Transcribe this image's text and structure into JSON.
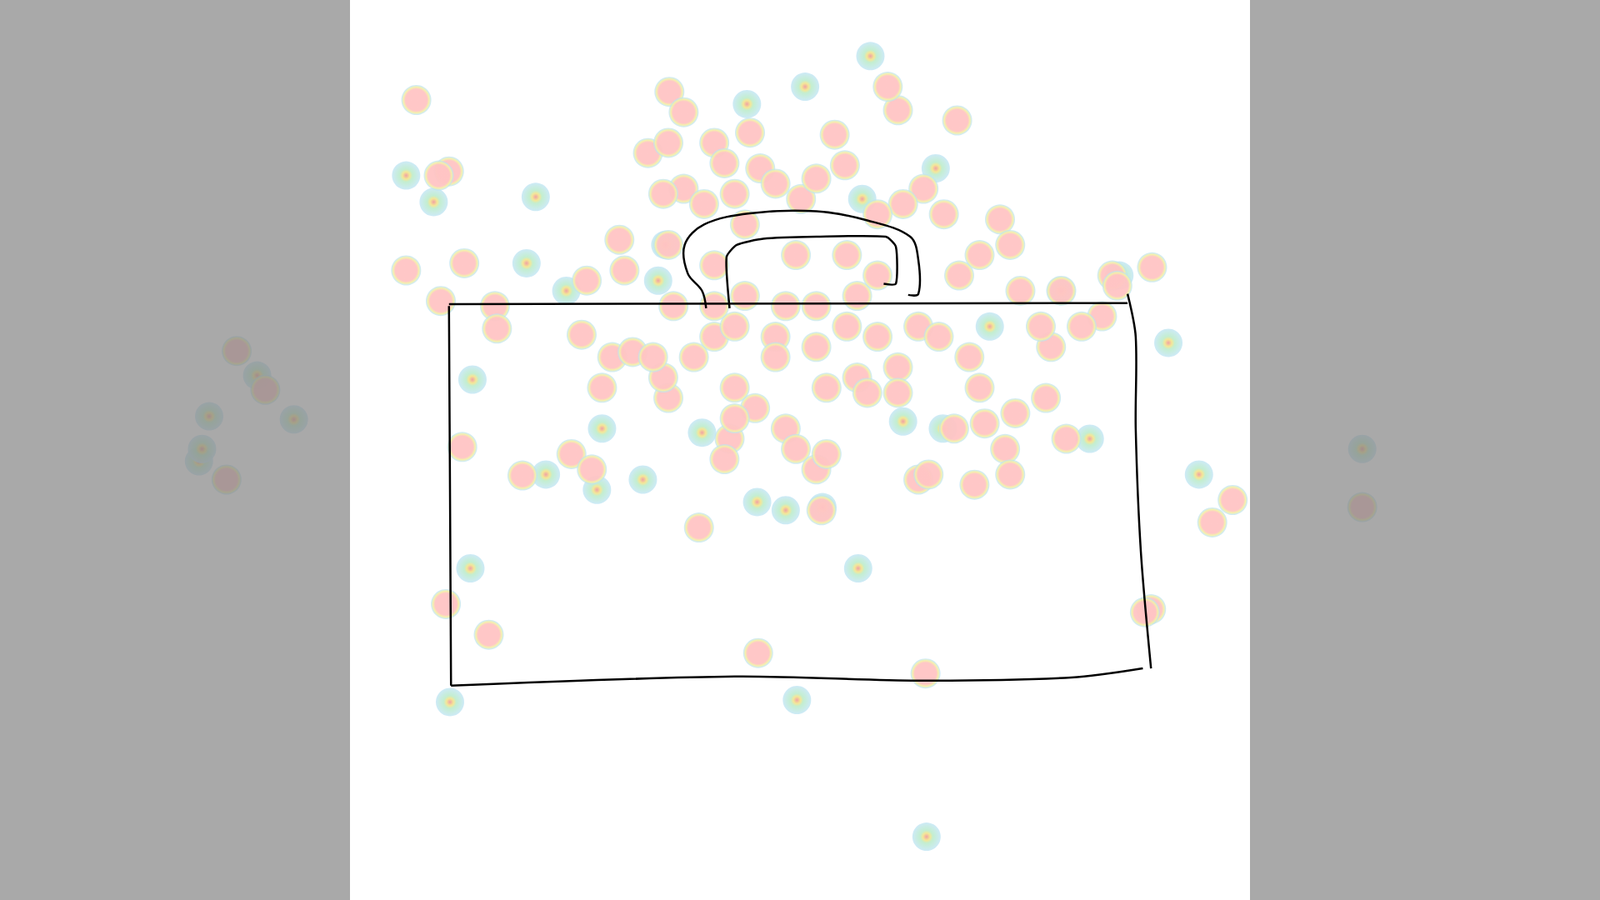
{
  "chart_data": {
    "type": "scatter",
    "xlim": [
      0,
      1568
    ],
    "ylim": [
      882,
      0
    ],
    "tick_labels": false,
    "grid": false,
    "series": [
      {
        "color": "#c8e8f6",
        "marker": "circle",
        "values": [
          [
            789,
            85
          ],
          [
            853,
            55
          ],
          [
            732,
            102
          ],
          [
            917,
            165
          ],
          [
            525,
            193
          ],
          [
            516,
            258
          ],
          [
            555,
            285
          ],
          [
            398,
            172
          ],
          [
            425,
            198
          ],
          [
            463,
            372
          ],
          [
            590,
            420
          ],
          [
            585,
            480
          ],
          [
            630,
            470
          ],
          [
            535,
            465
          ],
          [
            742,
            492
          ],
          [
            770,
            500
          ],
          [
            806,
            497
          ],
          [
            688,
            424
          ],
          [
            841,
            557
          ],
          [
            461,
            557
          ],
          [
            441,
            688
          ],
          [
            781,
            686
          ],
          [
            908,
            820
          ],
          [
            1068,
            430
          ],
          [
            1175,
            465
          ],
          [
            1145,
            336
          ],
          [
            1040,
            285
          ],
          [
            924,
            420
          ],
          [
            885,
            413
          ],
          [
            652,
            240
          ],
          [
            645,
            275
          ],
          [
            1097,
            270
          ],
          [
            970,
            320
          ],
          [
            845,
            195
          ],
          [
            252,
            368
          ],
          [
            205,
            408
          ],
          [
            288,
            411
          ],
          [
            195,
            452
          ],
          [
            198,
            440
          ],
          [
            1335,
            440
          ]
        ]
      },
      {
        "color": "#ffc4c4",
        "marker": "circle",
        "values": [
          [
            408,
            98
          ],
          [
            440,
            168
          ],
          [
            430,
            172
          ],
          [
            398,
            265
          ],
          [
            432,
            295
          ],
          [
            455,
            258
          ],
          [
            485,
            300
          ],
          [
            487,
            322
          ],
          [
            880,
            108
          ],
          [
            870,
            85
          ],
          [
            938,
            118
          ],
          [
            818,
            132
          ],
          [
            828,
            162
          ],
          [
            656,
            90
          ],
          [
            670,
            110
          ],
          [
            635,
            150
          ],
          [
            655,
            140
          ],
          [
            700,
            140
          ],
          [
            735,
            130
          ],
          [
            710,
            160
          ],
          [
            745,
            165
          ],
          [
            760,
            180
          ],
          [
            785,
            195
          ],
          [
            800,
            175
          ],
          [
            670,
            185
          ],
          [
            690,
            200
          ],
          [
            650,
            190
          ],
          [
            720,
            190
          ],
          [
            730,
            220
          ],
          [
            905,
            185
          ],
          [
            925,
            210
          ],
          [
            885,
            200
          ],
          [
            860,
            210
          ],
          [
            980,
            215
          ],
          [
            990,
            240
          ],
          [
            960,
            250
          ],
          [
            940,
            270
          ],
          [
            1000,
            285
          ],
          [
            1040,
            285
          ],
          [
            1090,
            270
          ],
          [
            1080,
            310
          ],
          [
            1060,
            320
          ],
          [
            1129,
            262
          ],
          [
            1095,
            280
          ],
          [
            607,
            235
          ],
          [
            612,
            265
          ],
          [
            655,
            240
          ],
          [
            575,
            275
          ],
          [
            570,
            328
          ],
          [
            600,
            350
          ],
          [
            620,
            345
          ],
          [
            590,
            380
          ],
          [
            655,
            390
          ],
          [
            650,
            370
          ],
          [
            680,
            350
          ],
          [
            700,
            330
          ],
          [
            720,
            320
          ],
          [
            760,
            330
          ],
          [
            800,
            340
          ],
          [
            830,
            320
          ],
          [
            860,
            330
          ],
          [
            880,
            360
          ],
          [
            900,
            320
          ],
          [
            920,
            330
          ],
          [
            950,
            350
          ],
          [
            960,
            380
          ],
          [
            965,
            415
          ],
          [
            995,
            405
          ],
          [
            985,
            440
          ],
          [
            990,
            465
          ],
          [
            1030,
            340
          ],
          [
            1025,
            390
          ],
          [
            1020,
            320
          ],
          [
            700,
            300
          ],
          [
            730,
            290
          ],
          [
            770,
            300
          ],
          [
            800,
            300
          ],
          [
            840,
            290
          ],
          [
            860,
            270
          ],
          [
            830,
            250
          ],
          [
            780,
            250
          ],
          [
            700,
            260
          ],
          [
            660,
            300
          ],
          [
            720,
            380
          ],
          [
            740,
            400
          ],
          [
            715,
            430
          ],
          [
            710,
            450
          ],
          [
            770,
            420
          ],
          [
            780,
            440
          ],
          [
            800,
            460
          ],
          [
            810,
            445
          ],
          [
            805,
            500
          ],
          [
            760,
            350
          ],
          [
            810,
            380
          ],
          [
            840,
            370
          ],
          [
            880,
            385
          ],
          [
            900,
            470
          ],
          [
            910,
            465
          ],
          [
            955,
            475
          ],
          [
            935,
            420
          ],
          [
            560,
            445
          ],
          [
            580,
            460
          ],
          [
            512,
            466
          ],
          [
            453,
            438
          ],
          [
            685,
            517
          ],
          [
            1045,
            430
          ],
          [
            1188,
            512
          ],
          [
            1208,
            490
          ],
          [
            1128,
            597
          ],
          [
            1122,
            600
          ],
          [
            743,
            640
          ],
          [
            907,
            660
          ],
          [
            437,
            592
          ],
          [
            479,
            622
          ],
          [
            850,
            385
          ],
          [
            720,
            410
          ],
          [
            640,
            350
          ],
          [
            232,
            344
          ],
          [
            260,
            382
          ],
          [
            222,
            470
          ],
          [
            1335,
            497
          ]
        ]
      }
    ]
  }
}
